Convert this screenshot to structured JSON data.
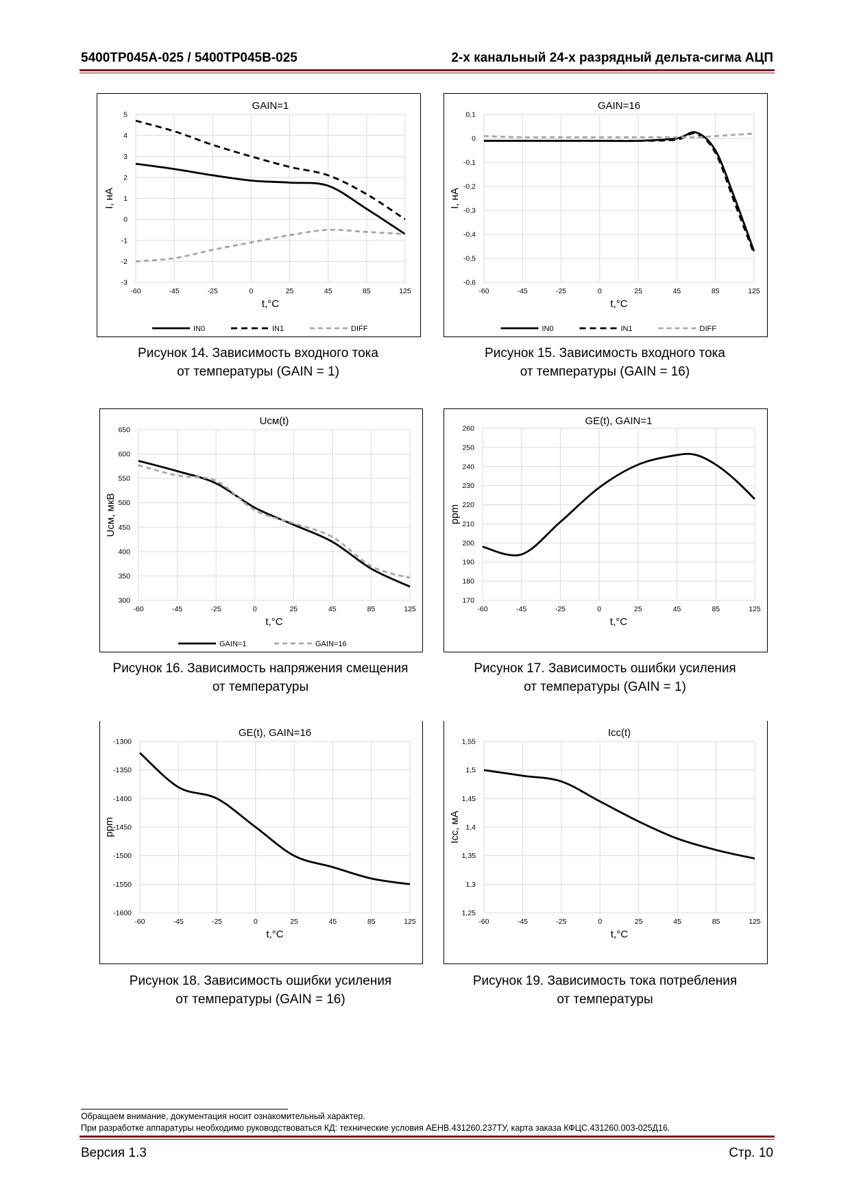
{
  "header": {
    "left": "5400ТР045А-025 / 5400ТР045В-025",
    "right": "2-х канальный 24-х разрядный дельта-сигма АЦП"
  },
  "charts": [
    {
      "title": "GAIN=1",
      "xlabel": "t,°C",
      "ylabel": "I, нА",
      "x_ticks": [
        "-60",
        "-45",
        "-25",
        "0",
        "25",
        "45",
        "85",
        "125"
      ],
      "y_ticks": [
        "5",
        "4",
        "3",
        "2",
        "1",
        "0",
        "-1",
        "-2",
        "-3"
      ],
      "caption_line1": "Рисунок 14. Зависимость входного тока",
      "caption_line2": "от температуры (GAIN = 1)",
      "legend": [
        "IN0",
        "IN1",
        "DIFF"
      ]
    },
    {
      "title": "GAIN=16",
      "xlabel": "t,°C",
      "ylabel": "I, нА",
      "x_ticks": [
        "-60",
        "-45",
        "-25",
        "0",
        "25",
        "45",
        "85",
        "125"
      ],
      "y_ticks": [
        "0,1",
        "0",
        "-0,1",
        "-0,2",
        "-0,3",
        "-0,4",
        "-0,5",
        "-0,6"
      ],
      "caption_line1": "Рисунок 15. Зависимость входного тока",
      "caption_line2": "от температуры (GAIN = 16)",
      "legend": [
        "IN0",
        "IN1",
        "DIFF"
      ]
    },
    {
      "title": "Uсм(t)",
      "xlabel": "t,°C",
      "ylabel": "Uсм, мкВ",
      "x_ticks": [
        "-60",
        "-45",
        "-25",
        "0",
        "25",
        "45",
        "85",
        "125"
      ],
      "y_ticks": [
        "650",
        "600",
        "550",
        "500",
        "450",
        "400",
        "350",
        "300"
      ],
      "caption_line1": "Рисунок 16. Зависимость напряжения смещения",
      "caption_line2": "от температуры",
      "legend": [
        "GAIN=1",
        "GAIN=16"
      ]
    },
    {
      "title": "GE(t), GAIN=1",
      "xlabel": "t,°C",
      "ylabel": "ppm",
      "x_ticks": [
        "-60",
        "-45",
        "-25",
        "0",
        "25",
        "45",
        "85",
        "125"
      ],
      "y_ticks": [
        "260",
        "250",
        "240",
        "230",
        "220",
        "210",
        "200",
        "190",
        "180",
        "170"
      ],
      "caption_line1": "Рисунок 17. Зависимость ошибки усиления",
      "caption_line2": "от температуры (GAIN = 1)",
      "legend": []
    },
    {
      "title": "GE(t), GAIN=16",
      "xlabel": "t,°C",
      "ylabel": "ppm",
      "x_ticks": [
        "-60",
        "-45",
        "-25",
        "0",
        "25",
        "45",
        "85",
        "125"
      ],
      "y_ticks": [
        "-1300",
        "-1350",
        "-1400",
        "-1450",
        "-1500",
        "-1550",
        "-1600"
      ],
      "caption_line1": "Рисунок 18. Зависимость ошибки усиления",
      "caption_line2": "от температуры (GAIN = 16)",
      "legend": []
    },
    {
      "title": "Icc(t)",
      "xlabel": "t,°C",
      "ylabel": "Icc, мА",
      "x_ticks": [
        "-60",
        "-45",
        "-25",
        "0",
        "25",
        "45",
        "85",
        "125"
      ],
      "y_ticks": [
        "1,55",
        "1,5",
        "1,45",
        "1,4",
        "1,35",
        "1,3",
        "1,25"
      ],
      "caption_line1": "Рисунок 19. Зависимость тока потребления",
      "caption_line2": "от температуры",
      "legend": []
    }
  ],
  "chart_data": [
    {
      "type": "line",
      "title": "GAIN=1",
      "xlabel": "t,°C",
      "ylabel": "I, нА",
      "x": [
        -60,
        -45,
        -25,
        0,
        25,
        45,
        85,
        125
      ],
      "ylim": [
        -3,
        5
      ],
      "grid": true,
      "legend": "bottom",
      "series": [
        {
          "name": "IN0",
          "style": "solid",
          "values": [
            2.65,
            2.4,
            2.1,
            1.85,
            1.75,
            1.6,
            0.5,
            -0.7
          ]
        },
        {
          "name": "IN1",
          "style": "dashed",
          "values": [
            4.7,
            4.2,
            3.55,
            3.0,
            2.5,
            2.1,
            1.2,
            0.0
          ]
        },
        {
          "name": "DIFF",
          "style": "gray-dashed",
          "values": [
            -2.0,
            -1.85,
            -1.45,
            -1.1,
            -0.75,
            -0.5,
            -0.6,
            -0.7
          ]
        }
      ]
    },
    {
      "type": "line",
      "title": "GAIN=16",
      "xlabel": "t,°C",
      "ylabel": "I, нА",
      "x": [
        -60,
        -45,
        -25,
        0,
        25,
        45,
        65,
        85,
        105,
        125
      ],
      "ylim": [
        -0.6,
        0.1
      ],
      "grid": true,
      "legend": "bottom",
      "series": [
        {
          "name": "IN0",
          "style": "solid",
          "values": [
            -0.01,
            -0.01,
            -0.01,
            -0.01,
            -0.01,
            0.0,
            0.025,
            -0.05,
            -0.25,
            -0.47
          ]
        },
        {
          "name": "IN1",
          "style": "dashed",
          "values": [
            -0.01,
            -0.01,
            -0.01,
            -0.01,
            -0.01,
            -0.005,
            0.02,
            -0.06,
            -0.27,
            -0.48
          ]
        },
        {
          "name": "DIFF",
          "style": "gray-dashed",
          "values": [
            0.01,
            0.005,
            0.005,
            0.005,
            0.005,
            0.005,
            0.005,
            0.01,
            0.015,
            0.02
          ]
        }
      ]
    },
    {
      "type": "line",
      "title": "Uсм(t)",
      "xlabel": "t,°C",
      "ylabel": "Uсм, мкВ",
      "x": [
        -60,
        -45,
        -25,
        0,
        25,
        45,
        85,
        125
      ],
      "ylim": [
        300,
        650
      ],
      "grid": true,
      "legend": "bottom",
      "series": [
        {
          "name": "GAIN=1",
          "style": "solid",
          "values": [
            586,
            565,
            540,
            490,
            455,
            420,
            365,
            328
          ]
        },
        {
          "name": "GAIN=16",
          "style": "gray-dashed",
          "values": [
            577,
            556,
            545,
            485,
            458,
            430,
            370,
            346
          ]
        }
      ]
    },
    {
      "type": "line",
      "title": "GE(t), GAIN=1",
      "xlabel": "t,°C",
      "ylabel": "ppm",
      "x": [
        -60,
        -45,
        -25,
        0,
        25,
        45,
        65,
        85,
        105,
        125
      ],
      "ylim": [
        170,
        260
      ],
      "grid": true,
      "series": [
        {
          "name": "",
          "style": "solid",
          "values": [
            198,
            194,
            211,
            229,
            241,
            246,
            246,
            241,
            233,
            223
          ]
        }
      ]
    },
    {
      "type": "line",
      "title": "GE(t), GAIN=16",
      "xlabel": "t,°C",
      "ylabel": "ppm",
      "x": [
        -60,
        -45,
        -25,
        0,
        25,
        45,
        85,
        125
      ],
      "ylim": [
        -1600,
        -1300
      ],
      "grid": true,
      "series": [
        {
          "name": "",
          "style": "solid",
          "values": [
            -1320,
            -1380,
            -1400,
            -1450,
            -1500,
            -1520,
            -1540,
            -1550
          ]
        }
      ]
    },
    {
      "type": "line",
      "title": "Icc(t)",
      "xlabel": "t,°C",
      "ylabel": "Icc, мА",
      "x": [
        -60,
        -45,
        -25,
        0,
        25,
        45,
        85,
        125
      ],
      "ylim": [
        1.25,
        1.55
      ],
      "grid": true,
      "series": [
        {
          "name": "",
          "style": "solid",
          "values": [
            1.5,
            1.49,
            1.48,
            1.445,
            1.41,
            1.38,
            1.36,
            1.345
          ]
        }
      ]
    }
  ],
  "footnote": {
    "line1": "Обращаем внимание, документация носит ознакомительный характер.",
    "line2": "При разработке аппаратуры необходимо руководствоваться КД: технические условия АЕНВ.431260.237ТУ, карта заказа КФЦС.431260.003-025Д16."
  },
  "footer": {
    "version": "Версия 1.3",
    "page": "Стр. 10"
  }
}
